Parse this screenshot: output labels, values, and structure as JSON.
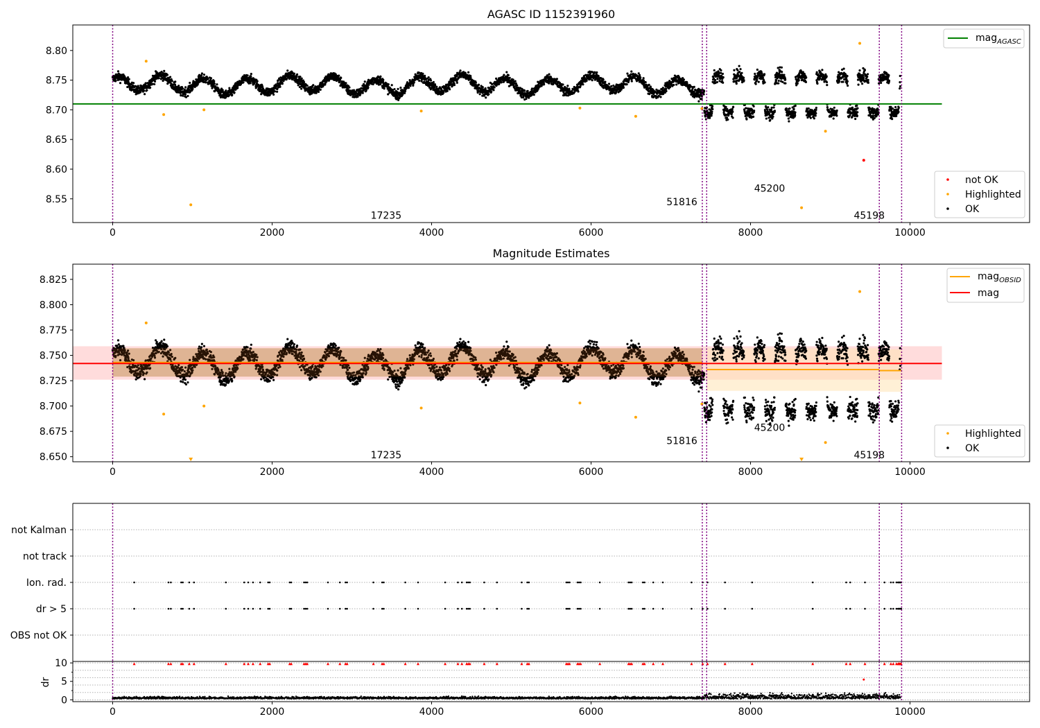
{
  "figure": {
    "title": "AGASC ID 1152391960"
  },
  "chart_data": [
    {
      "panel": "top",
      "type": "scatter",
      "title": "AGASC ID 1152391960",
      "xlim": [
        -500,
        11500
      ],
      "ylim": [
        8.51,
        8.843
      ],
      "xticks": [
        0,
        2000,
        4000,
        6000,
        8000,
        10000
      ],
      "yticks": [
        8.55,
        8.6,
        8.65,
        8.7,
        8.75,
        8.8
      ],
      "mag_agasc": 8.71,
      "mag_agasc_xrange": [
        -500,
        10400
      ],
      "obsid_boundaries": [
        0,
        7395,
        7450,
        9615,
        9895
      ],
      "obsid_labels": [
        {
          "text": "17235",
          "x": 3690,
          "y": 8.522
        },
        {
          "text": "51816",
          "x": 7400,
          "y": 8.545
        },
        {
          "text": "45200",
          "x": 8500,
          "y": 8.568
        },
        {
          "text": "45198",
          "x": 9750,
          "y": 8.522
        }
      ],
      "highlighted": [
        [
          420,
          8.782
        ],
        [
          640,
          8.692
        ],
        [
          980,
          8.54
        ],
        [
          1145,
          8.7
        ],
        [
          3870,
          8.698
        ],
        [
          5860,
          8.703
        ],
        [
          6560,
          8.689
        ],
        [
          7390,
          8.702
        ],
        [
          8640,
          8.535
        ],
        [
          8940,
          8.664
        ],
        [
          9370,
          8.812
        ]
      ],
      "not_ok": [
        [
          9420,
          8.615
        ]
      ],
      "legend": {
        "line": "mag_AGASC",
        "markers": [
          "not OK",
          "Highlighted",
          "OK"
        ]
      }
    },
    {
      "panel": "middle",
      "type": "scatter",
      "title": "Magnitude Estimates",
      "xlim": [
        -500,
        11500
      ],
      "ylim": [
        8.645,
        8.84
      ],
      "xticks": [
        0,
        2000,
        4000,
        6000,
        8000,
        10000
      ],
      "yticks": [
        8.65,
        8.675,
        8.7,
        8.725,
        8.75,
        8.775,
        8.8,
        8.825
      ],
      "mag": 8.742,
      "mag_band": [
        8.726,
        8.759
      ],
      "mag_xrange": [
        -500,
        10400
      ],
      "mag_obsid": [
        {
          "x0": 0,
          "x1": 7395,
          "mag": 8.743,
          "band": [
            8.729,
            8.757
          ]
        },
        {
          "x0": 7450,
          "x1": 9615,
          "mag": 8.736,
          "band": [
            8.715,
            8.757
          ]
        },
        {
          "x0": 9615,
          "x1": 9895,
          "mag": 8.735,
          "band": [
            8.714,
            8.756
          ]
        }
      ],
      "obsid_boundaries": [
        0,
        7395,
        7450,
        9615,
        9895
      ],
      "obsid_labels": [
        {
          "text": "17235",
          "x": 3690,
          "y": 8.652
        },
        {
          "text": "51816",
          "x": 7400,
          "y": 8.666
        },
        {
          "text": "45200",
          "x": 8500,
          "y": 8.679
        },
        {
          "text": "45198",
          "x": 9750,
          "y": 8.652
        }
      ],
      "highlighted": [
        [
          420,
          8.782
        ],
        [
          640,
          8.692
        ],
        [
          1145,
          8.7
        ],
        [
          3870,
          8.698
        ],
        [
          5860,
          8.703
        ],
        [
          6560,
          8.689
        ],
        [
          7390,
          8.702
        ],
        [
          8940,
          8.664
        ],
        [
          9370,
          8.813
        ]
      ],
      "off_scale_markers": [
        [
          980,
          8.647
        ],
        [
          8640,
          8.647
        ]
      ],
      "legend": {
        "lines": [
          "mag_OBSID",
          "mag"
        ],
        "markers": [
          "Highlighted",
          "OK"
        ]
      }
    },
    {
      "panel": "flags",
      "type": "scatter",
      "xlim": [
        -500,
        11500
      ],
      "categories": [
        "not Kalman",
        "not track",
        "Ion. rad.",
        "dr > 5",
        "OBS not OK"
      ],
      "obsid_boundaries": [
        0,
        7395,
        7450,
        9615,
        9895
      ],
      "ion_rad_x": [
        270,
        700,
        730,
        860,
        880,
        960,
        1020,
        1420,
        1650,
        1700,
        1760,
        1850,
        1950,
        1970,
        2220,
        2240,
        2400,
        2420,
        2440,
        2700,
        2850,
        2920,
        2940,
        3270,
        3380,
        3400,
        3670,
        3830,
        4170,
        4330,
        4380,
        4440,
        4460,
        4480,
        4660,
        4820,
        5130,
        5200,
        5220,
        5690,
        5710,
        5730,
        5830,
        5850,
        5870,
        6110,
        6470,
        6490,
        6510,
        6650,
        6670,
        6780,
        6900,
        7260,
        7400,
        7460,
        7680,
        8020,
        8780,
        9200,
        9250,
        9435,
        9680,
        9760,
        9790,
        9830,
        9850,
        9860,
        9870,
        9880,
        9890
      ]
    },
    {
      "panel": "dr",
      "type": "scatter",
      "ylabel": "dr",
      "xlim": [
        -500,
        11500
      ],
      "ylim": [
        -0.5,
        10.4
      ],
      "yticks": [
        0,
        5,
        10
      ],
      "obsid_boundaries": [
        0,
        7395,
        7450,
        9615,
        9895
      ],
      "dr_gt5_markers_y": 9.8,
      "dr_extra": [
        [
          9420,
          5.5
        ]
      ],
      "dr_baseline": 0.3
    }
  ],
  "legends": {
    "top_line": "mag",
    "top_line_sub": "AGASC",
    "top_not_ok": "not OK",
    "top_highlighted": "Highlighted",
    "top_ok": "OK",
    "mid_line1": "mag",
    "mid_line1_sub": "OBSID",
    "mid_line2": "mag",
    "mid_highlighted": "Highlighted",
    "mid_ok": "OK"
  },
  "colors": {
    "ok": "#000000",
    "highlighted": "#ffa500",
    "not_ok": "#ff0000",
    "mag_agasc": "#008000",
    "mag": "#ff0000",
    "mag_obsid": "#ffa500",
    "obsid_boundary": "#800080",
    "mag_band": "#ffc0c0",
    "mag_obsid_band": "#ffe4b5"
  }
}
